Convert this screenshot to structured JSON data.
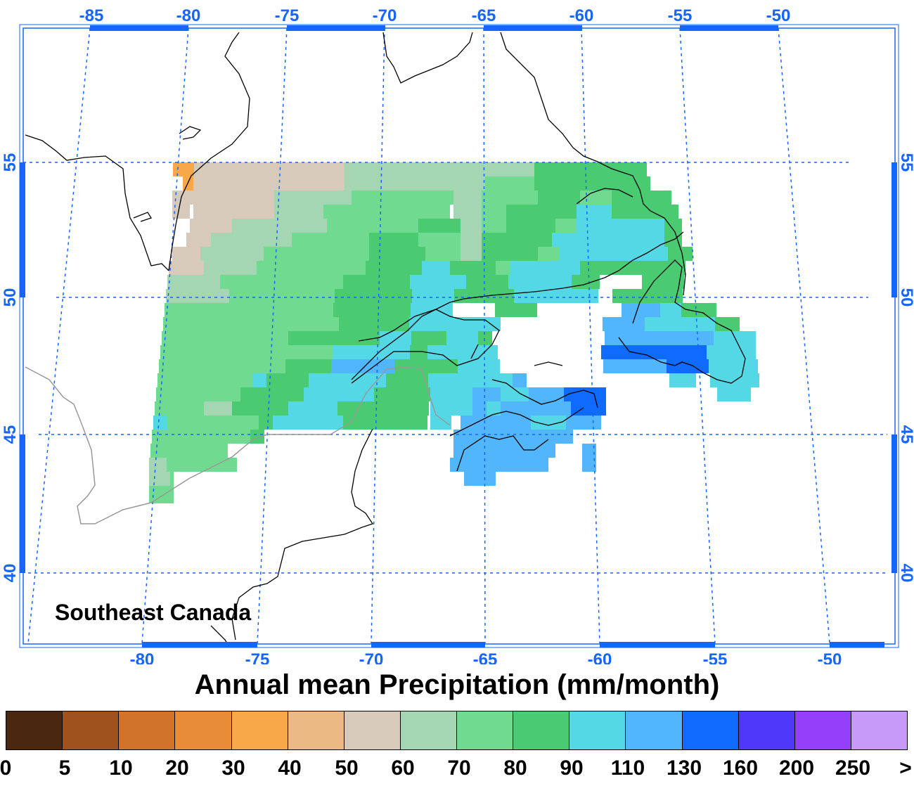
{
  "title": "Annual mean Precipitation (mm/month)",
  "region": "Southeast Canada",
  "colors": {
    "axis": "#1565ff",
    "grid": "#1565ff",
    "coast": "#000000",
    "border": "#999999"
  },
  "top_lon_labels": [
    "-85",
    "-80",
    "-75",
    "-70",
    "-65",
    "-60",
    "-55",
    "-50"
  ],
  "bottom_lon_labels": [
    "-80",
    "-75",
    "-70",
    "-65",
    "-60",
    "-55",
    "-50"
  ],
  "left_lat_labels": [
    "55",
    "50",
    "45",
    "40"
  ],
  "right_lat_labels": [
    "55",
    "50",
    "45",
    "40"
  ],
  "colorbar": {
    "colors": [
      "#4a2810",
      "#a0521e",
      "#d2732a",
      "#e98c37",
      "#f8a848",
      "#ebb984",
      "#d8cabb",
      "#a5d6b4",
      "#70db90",
      "#4bcb71",
      "#55d8e6",
      "#52b6fc",
      "#0f6bfd",
      "#5038fa",
      "#943ff9",
      "#c79afa"
    ],
    "labels": [
      "0",
      "5",
      "10",
      "20",
      "30",
      "40",
      "50",
      "60",
      "70",
      "80",
      "90",
      "110",
      "130",
      "160",
      "200",
      "250",
      ">"
    ]
  }
}
